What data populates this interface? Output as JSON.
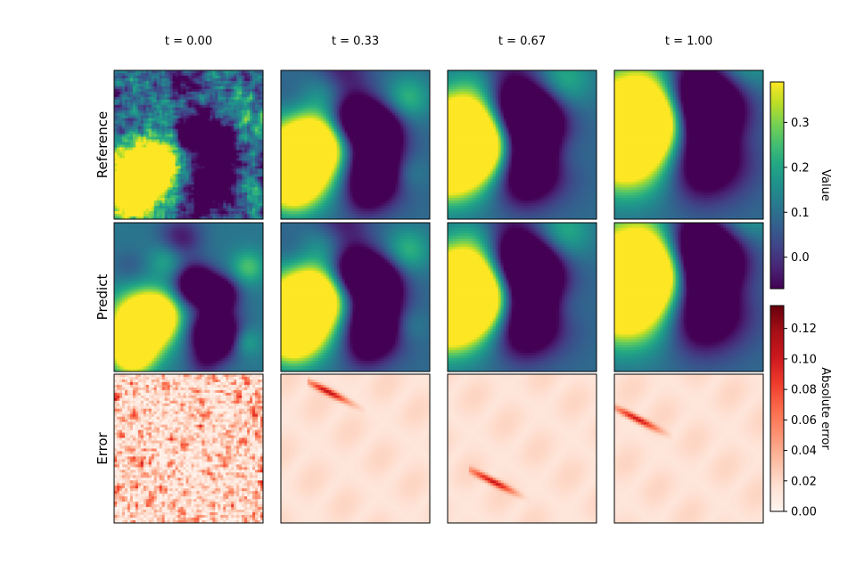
{
  "chart_data": {
    "type": "heatmap",
    "columns": [
      "t = 0.00",
      "t = 0.33",
      "t = 0.67",
      "t = 1.00"
    ],
    "times": [
      0.0,
      0.33,
      0.67,
      1.0
    ],
    "rows": [
      "Reference",
      "Predict",
      "Error"
    ],
    "colorbars": [
      {
        "label": "Value",
        "colormap": "viridis",
        "range": [
          -0.07,
          0.39
        ],
        "ticks": [
          0.0,
          0.1,
          0.2,
          0.3
        ],
        "tick_labels": [
          "0.0",
          "0.1",
          "0.2",
          "0.3"
        ]
      },
      {
        "label": "Absolute error",
        "colormap": "Reds",
        "range": [
          0.0,
          0.135
        ],
        "ticks": [
          0.0,
          0.02,
          0.04,
          0.06,
          0.08,
          0.1,
          0.12
        ],
        "tick_labels": [
          "0.00",
          "0.02",
          "0.04",
          "0.06",
          "0.08",
          "0.10",
          "0.12"
        ]
      }
    ],
    "grid": false
  }
}
